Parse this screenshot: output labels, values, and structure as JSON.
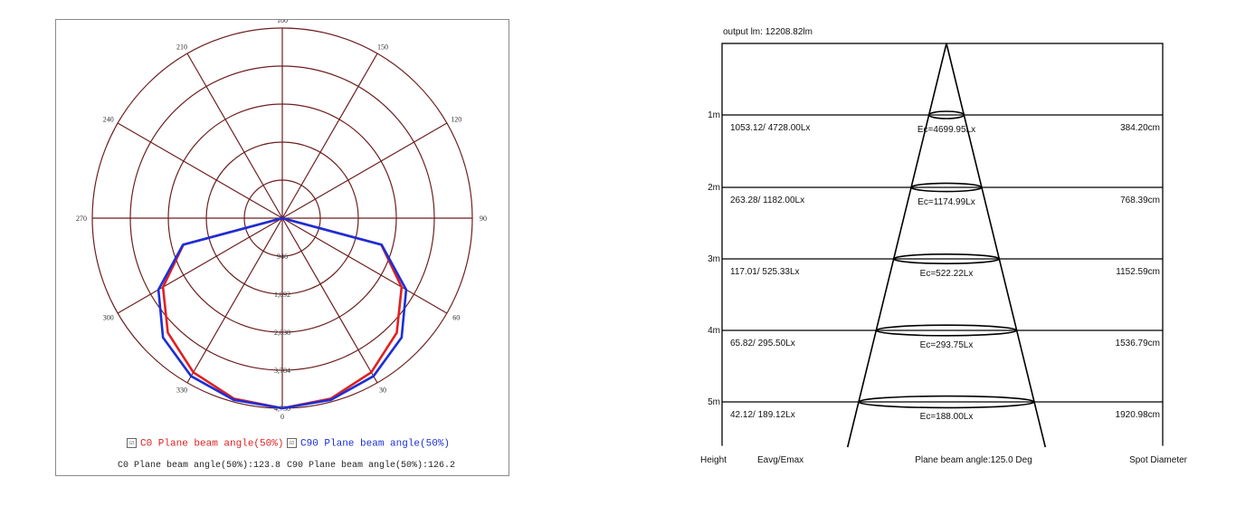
{
  "polar_chart": {
    "type": "polar",
    "angle_labels": [
      "180",
      "150",
      "120",
      "90",
      "60",
      "30",
      "0",
      "330",
      "300",
      "270",
      "240",
      "210"
    ],
    "radial_labels": [
      "946",
      "1,892",
      "2,838",
      "3,784",
      "4,730"
    ],
    "rmax": 4730,
    "series": [
      {
        "name": "C0 Plane beam angle(50%)",
        "color": "#e02020",
        "angles": [
          0,
          15,
          30,
          45,
          60,
          75,
          90,
          105,
          120,
          135,
          150,
          165,
          180,
          195,
          210,
          225,
          240,
          255,
          270,
          285,
          300,
          315,
          330,
          345
        ],
        "values": [
          4730,
          4650,
          4430,
          4030,
          3430,
          2550,
          0,
          0,
          0,
          0,
          0,
          0,
          0,
          0,
          0,
          0,
          0,
          0,
          0,
          2550,
          3430,
          4030,
          4430,
          4650
        ]
      },
      {
        "name": "C90 Plane beam angle(50%)",
        "color": "#1a2fd8",
        "angles": [
          0,
          15,
          30,
          45,
          60,
          75,
          90,
          105,
          120,
          135,
          150,
          165,
          180,
          195,
          210,
          225,
          240,
          255,
          270,
          285,
          300,
          315,
          330,
          345
        ],
        "values": [
          4730,
          4680,
          4540,
          4200,
          3560,
          2560,
          0,
          0,
          0,
          0,
          0,
          0,
          0,
          0,
          0,
          0,
          0,
          0,
          0,
          2560,
          3560,
          4200,
          4540,
          4680
        ]
      }
    ],
    "legend": [
      {
        "label": "C0 Plane beam angle(50%)",
        "color": "#e02020",
        "checked": "☑"
      },
      {
        "label": "C90 Plane beam angle(50%)",
        "color": "#1a2fd8",
        "checked": "☑"
      }
    ],
    "notes": {
      "c0": "C0 Plane beam angle(50%):123.8",
      "c90": "C90 Plane beam angle(50%):126.2"
    }
  },
  "chart_data": {
    "type": "table",
    "title": "output lm: 12208.82lm",
    "columns": [
      "Height",
      "Eavg/Emax",
      "Plane beam angle:125.0 Deg",
      "Spot Diameter"
    ],
    "rows": [
      {
        "height": "1m",
        "eavg_emax": "1053.12/ 4728.00Lx",
        "ec": "Ec=4699.95Lx",
        "spot": "384.20cm"
      },
      {
        "height": "2m",
        "eavg_emax": "263.28/ 1182.00Lx",
        "ec": "Ec=1174.99Lx",
        "spot": "768.39cm"
      },
      {
        "height": "3m",
        "eavg_emax": "117.01/ 525.33Lx",
        "ec": "Ec=522.22Lx",
        "spot": "1152.59cm"
      },
      {
        "height": "4m",
        "eavg_emax": "65.82/ 295.50Lx",
        "ec": "Ec=293.75Lx",
        "spot": "1536.79cm"
      },
      {
        "height": "5m",
        "eavg_emax": "42.12/ 189.12Lx",
        "ec": "Ec=188.00Lx",
        "spot": "1920.98cm"
      }
    ],
    "beam_angle_deg": 125.0
  }
}
